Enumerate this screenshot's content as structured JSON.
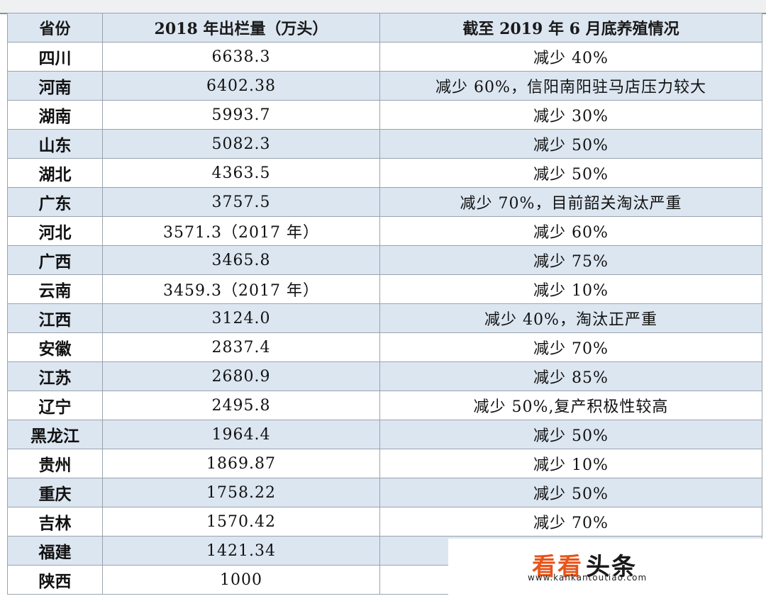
{
  "table": {
    "headers": [
      "省份",
      "2018 年出栏量（万头）",
      "截至 2019 年 6 月底养殖情况"
    ],
    "rows": [
      {
        "province": "四川",
        "output": "6638.3",
        "status": "减少 40%"
      },
      {
        "province": "河南",
        "output": "6402.38",
        "status": "减少 60%，信阳南阳驻马店压力较大"
      },
      {
        "province": "湖南",
        "output": "5993.7",
        "status": "减少 30%"
      },
      {
        "province": "山东",
        "output": "5082.3",
        "status": "减少 50%"
      },
      {
        "province": "湖北",
        "output": "4363.5",
        "status": "减少 50%"
      },
      {
        "province": "广东",
        "output": "3757.5",
        "status": "减少 70%，目前韶关淘汰严重"
      },
      {
        "province": "河北",
        "output": "3571.3（2017 年）",
        "status": "减少 60%"
      },
      {
        "province": "广西",
        "output": "3465.8",
        "status": "减少 75%"
      },
      {
        "province": "云南",
        "output": "3459.3（2017 年）",
        "status": "减少 10%"
      },
      {
        "province": "江西",
        "output": "3124.0",
        "status": "减少 40%，淘汰正严重"
      },
      {
        "province": "安徽",
        "output": "2837.4",
        "status": "减少 70%"
      },
      {
        "province": "江苏",
        "output": "2680.9",
        "status": "减少 85%"
      },
      {
        "province": "辽宁",
        "output": "2495.8",
        "status": "减少 50%,复产积极性较高"
      },
      {
        "province": "黑龙江",
        "output": "1964.4",
        "status": "减少 50%"
      },
      {
        "province": "贵州",
        "output": "1869.87",
        "status": "减少 10%"
      },
      {
        "province": "重庆",
        "output": "1758.22",
        "status": "减少 50%"
      },
      {
        "province": "吉林",
        "output": "1570.42",
        "status": "减少 70%"
      },
      {
        "province": "福建",
        "output": "1421.34",
        "status": ""
      },
      {
        "province": "陕西",
        "output": "1000",
        "status": ""
      }
    ]
  },
  "watermark": {
    "logo_colored": "看看",
    "logo_text": "头条",
    "url": "www.kankantoutiao.com",
    "logo_color": "#e8541a"
  },
  "colors": {
    "header_fill": "#dce6f1",
    "stripe_fill": "#dce6f1",
    "grid_line": "#9aa3ad"
  }
}
